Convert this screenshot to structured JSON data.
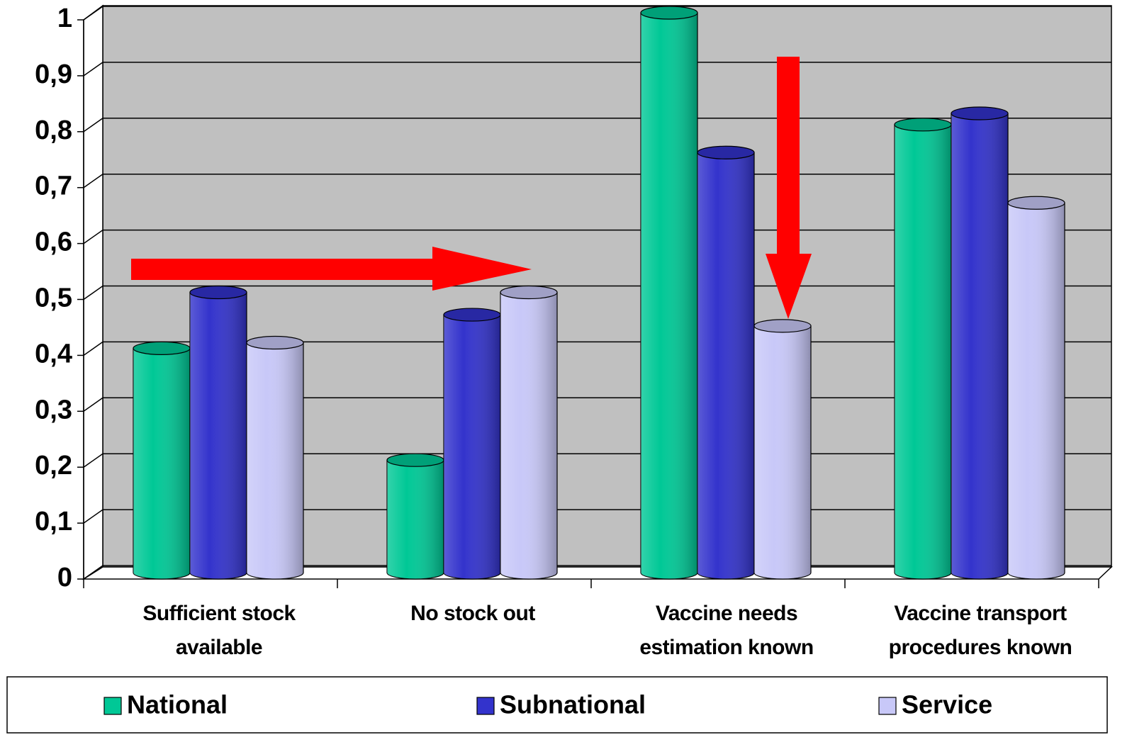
{
  "chart_data": {
    "type": "bar",
    "categories": [
      "Sufficient stock available",
      "No stock out",
      "Vaccine needs estimation known",
      "Vaccine transport procedures known"
    ],
    "series": [
      {
        "name": "National",
        "color": "#00c896",
        "values": [
          0.4,
          0.2,
          1.0,
          0.8
        ]
      },
      {
        "name": "Subnational",
        "color": "#3333cc",
        "values": [
          0.5,
          0.46,
          0.75,
          0.82
        ]
      },
      {
        "name": "Service",
        "color": "#c8c8f8",
        "values": [
          0.41,
          0.5,
          0.44,
          0.66
        ]
      }
    ],
    "ylim": [
      0,
      1
    ],
    "yticks": [
      0,
      {
        "value": 0.1,
        "label": "0,1"
      },
      {
        "value": 0.2,
        "label": "0,2"
      },
      {
        "value": 0.3,
        "label": "0,3"
      },
      {
        "value": 0.4,
        "label": "0,4"
      },
      {
        "value": 0.5,
        "label": "0,5"
      },
      {
        "value": 0.6,
        "label": "0,6"
      },
      {
        "value": 0.7,
        "label": "0,7"
      },
      {
        "value": 0.8,
        "label": "0,8"
      },
      {
        "value": 0.9,
        "label": "0,9"
      },
      1
    ],
    "grid": true,
    "legend": "bottom"
  }
}
